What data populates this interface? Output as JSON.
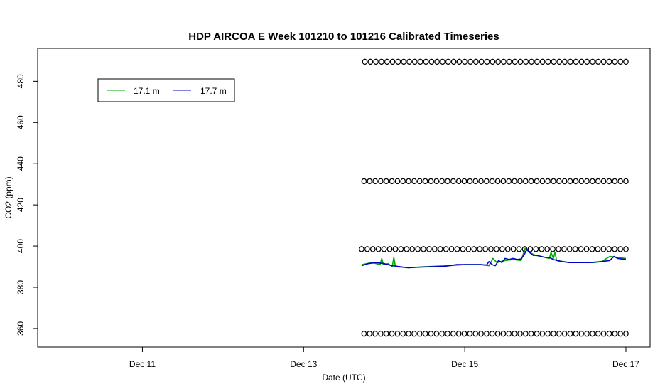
{
  "chart_data": {
    "type": "line",
    "title": "HDP AIRCOA E  Week 101210 to 101216  Calibrated Timeseries",
    "xlabel": "Date (UTC)",
    "ylabel": "CO2 (ppm)",
    "x_ticks": [
      {
        "value": 11,
        "label": "Dec 11"
      },
      {
        "value": 13,
        "label": "Dec 13"
      },
      {
        "value": 15,
        "label": "Dec 15"
      },
      {
        "value": 17,
        "label": "Dec 17"
      }
    ],
    "y_ticks": [
      360,
      380,
      400,
      420,
      440,
      460,
      480
    ],
    "xlim": [
      9.7,
      17.3
    ],
    "ylim": [
      351,
      496
    ],
    "grid": false,
    "legend": {
      "placement": "top-left"
    },
    "colors": {
      "17.1 m": "#00aa00",
      "17.7 m": "#0000cc",
      "calibration": "#000000"
    },
    "series": [
      {
        "name": "17.1 m",
        "x": [
          13.72,
          13.85,
          13.95,
          13.97,
          13.99,
          14.05,
          14.1,
          14.12,
          14.14,
          14.3,
          14.5,
          14.8,
          15.0,
          15.2,
          15.3,
          15.35,
          15.4,
          15.5,
          15.6,
          15.7,
          15.75,
          15.8,
          15.88,
          15.95,
          16.05,
          16.07,
          16.1,
          16.12,
          16.14,
          16.3,
          16.6,
          16.7,
          16.8,
          17.0
        ],
        "y": [
          391,
          392,
          391,
          394,
          391,
          391.5,
          390,
          394.5,
          390,
          389.5,
          390,
          390.5,
          391,
          391,
          390.5,
          394,
          392,
          393,
          393.5,
          393,
          399,
          397,
          395.5,
          395,
          394,
          397,
          394,
          397,
          393,
          392,
          392,
          392.5,
          395,
          394
        ]
      },
      {
        "name": "17.7 m",
        "x": [
          13.72,
          13.8,
          13.9,
          14.0,
          14.1,
          14.2,
          14.3,
          14.45,
          14.6,
          14.75,
          14.9,
          15.05,
          15.2,
          15.27,
          15.3,
          15.34,
          15.38,
          15.42,
          15.46,
          15.5,
          15.55,
          15.6,
          15.65,
          15.7,
          15.74,
          15.77,
          15.8,
          15.85,
          15.9,
          15.95,
          16.0,
          16.05,
          16.1,
          16.15,
          16.2,
          16.3,
          16.4,
          16.55,
          16.7,
          16.8,
          16.85,
          16.9,
          17.0
        ],
        "y": [
          390.5,
          391.5,
          392,
          391.5,
          390.5,
          390,
          389.5,
          389.8,
          390,
          390.2,
          391,
          391,
          391,
          390.8,
          392.5,
          391,
          390.5,
          393,
          392,
          394,
          393.5,
          394,
          393.5,
          393.8,
          396,
          398.5,
          397,
          395.5,
          395.5,
          395,
          394.5,
          394.5,
          393.5,
          393,
          392.5,
          392,
          392,
          392,
          392.5,
          393,
          395,
          394,
          393.5
        ]
      },
      {
        "name": "calibration",
        "marker": "circle",
        "levels": [
          {
            "y": 357.5,
            "x_start": 13.75,
            "x_end": 17.0,
            "count": 48
          },
          {
            "y": 398.5,
            "x_start": 13.72,
            "x_end": 17.0,
            "count": 48
          },
          {
            "y": 431.5,
            "x_start": 13.75,
            "x_end": 17.0,
            "count": 48
          },
          {
            "y": 489.5,
            "x_start": 13.76,
            "x_end": 17.0,
            "count": 48
          }
        ]
      }
    ]
  }
}
